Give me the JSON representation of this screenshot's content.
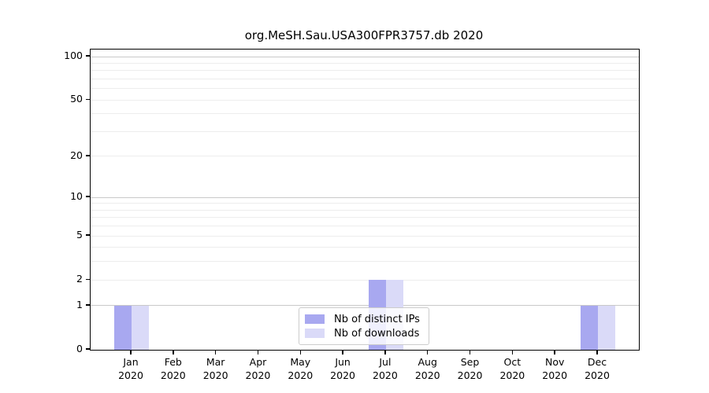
{
  "figure": {
    "background": "#ffffff"
  },
  "chart_data": {
    "type": "bar",
    "title": "org.MeSH.Sau.USA300FPR3757.db 2020",
    "categories": [
      "Jan 2020",
      "Feb 2020",
      "Mar 2020",
      "Apr 2020",
      "May 2020",
      "Jun 2020",
      "Jul 2020",
      "Aug 2020",
      "Sep 2020",
      "Oct 2020",
      "Nov 2020",
      "Dec 2020"
    ],
    "series": [
      {
        "name": "Nb of distinct IPs",
        "color": "#a8a8f0",
        "values": [
          1,
          0,
          0,
          0,
          0,
          0,
          2,
          0,
          0,
          0,
          0,
          1
        ]
      },
      {
        "name": "Nb of downloads",
        "color": "#dadaf8",
        "values": [
          1,
          0,
          0,
          0,
          0,
          0,
          2,
          0,
          0,
          0,
          0,
          1
        ]
      }
    ],
    "xlabel": "",
    "ylabel": "",
    "y_axis": {
      "scale": "log1p",
      "lim": [
        0,
        100
      ],
      "tick_labels": [
        0,
        1,
        2,
        5,
        10,
        20,
        50,
        100
      ],
      "major_gridlines": [
        1,
        10,
        100
      ],
      "minor_gridlines": [
        2,
        3,
        4,
        5,
        6,
        7,
        8,
        9,
        20,
        30,
        40,
        50,
        60,
        70,
        80,
        90
      ]
    },
    "grid": "on",
    "legend": {
      "position": "bottom-center",
      "entries": [
        "Nb of distinct IPs",
        "Nb of downloads"
      ]
    },
    "colors": {
      "major_grid": "#c9c9c9",
      "minor_grid": "#ededed",
      "spine": "#000000",
      "text": "#000000"
    }
  }
}
